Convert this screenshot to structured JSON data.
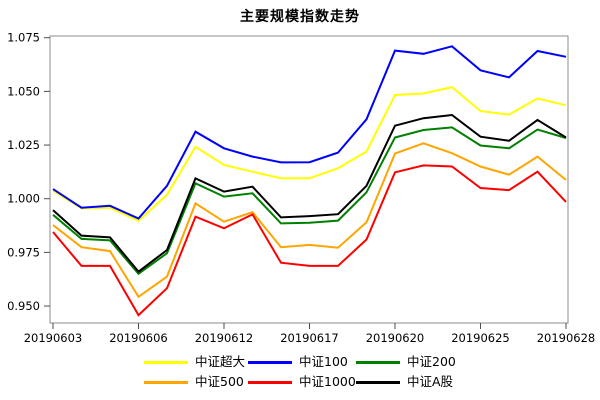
{
  "title": "主要规模指数走势",
  "chart_data": {
    "type": "line",
    "title": "主要规模指数走势",
    "xlabel": "",
    "ylabel": "",
    "grid": false,
    "legend_position": "bottom",
    "frame_color": "#8c8c8c",
    "tick_color": "#4d4d4d",
    "text_color": "#000000",
    "ylim": [
      0.9421,
      1.0758
    ],
    "y_ticks": [
      {
        "label": "1.075",
        "value": 1.075
      },
      {
        "label": "1.050",
        "value": 1.05
      },
      {
        "label": "1.025",
        "value": 1.025
      },
      {
        "label": "1.000",
        "value": 1.0
      },
      {
        "label": "0.975",
        "value": 0.975
      },
      {
        "label": "0.950",
        "value": 0.95
      }
    ],
    "x_categories": [
      "20190603",
      "20190604",
      "20190605",
      "20190606",
      "20190610",
      "20190611",
      "20190612",
      "20190613",
      "20190614",
      "20190617",
      "20190618",
      "20190619",
      "20190620",
      "20190621",
      "20190624",
      "20190625",
      "20190626",
      "20190627",
      "20190628"
    ],
    "x_ticks": [
      {
        "label": "20190603",
        "index": 0
      },
      {
        "label": "20190606",
        "index": 3
      },
      {
        "label": "20190612",
        "index": 6
      },
      {
        "label": "20190617",
        "index": 9
      },
      {
        "label": "20190620",
        "index": 12
      },
      {
        "label": "20190625",
        "index": 15
      },
      {
        "label": "20190628",
        "index": 18
      }
    ],
    "series": [
      {
        "name": "中证超大",
        "color": "#FFFF00",
        "values": [
          1.0038,
          0.9955,
          0.9958,
          0.9897,
          1.0018,
          1.0242,
          1.0157,
          1.0126,
          1.0095,
          1.0095,
          1.0142,
          1.022,
          1.0483,
          1.049,
          1.052,
          1.0408,
          1.0392,
          1.0467,
          1.0435
        ]
      },
      {
        "name": "中证100",
        "color": "#0000FF",
        "values": [
          1.0045,
          0.9958,
          0.9967,
          0.9908,
          1.006,
          1.0312,
          1.0235,
          1.0196,
          1.0169,
          1.017,
          1.0215,
          1.037,
          1.069,
          1.0675,
          1.071,
          1.0598,
          1.0565,
          1.0688,
          1.0661
        ]
      },
      {
        "name": "中证200",
        "color": "#008000",
        "values": [
          0.9925,
          0.9813,
          0.9806,
          0.965,
          0.9746,
          1.0072,
          1.001,
          1.0025,
          0.9885,
          0.9888,
          0.9898,
          1.003,
          1.0285,
          1.032,
          1.0332,
          1.0248,
          1.0235,
          1.0322,
          1.0283
        ]
      },
      {
        "name": "中证500",
        "color": "#FFA500",
        "values": [
          0.9877,
          0.9774,
          0.9756,
          0.9543,
          0.9637,
          0.9978,
          0.9893,
          0.9937,
          0.9774,
          0.9785,
          0.9772,
          0.989,
          1.021,
          1.0258,
          1.0212,
          1.015,
          1.0112,
          1.0196,
          1.0087
        ]
      },
      {
        "name": "中证1000",
        "color": "#FF0000",
        "values": [
          0.9845,
          0.9687,
          0.9687,
          0.9458,
          0.9583,
          0.9916,
          0.9862,
          0.9927,
          0.9702,
          0.9687,
          0.9687,
          0.981,
          1.0123,
          1.0155,
          1.015,
          1.005,
          1.004,
          1.0126,
          0.9985
        ]
      },
      {
        "name": "中证A股",
        "color": "#000000",
        "values": [
          0.9947,
          0.9828,
          0.982,
          0.966,
          0.9761,
          1.0095,
          1.0033,
          1.0056,
          0.9913,
          0.9919,
          0.9928,
          1.006,
          1.034,
          1.0375,
          1.039,
          1.0289,
          1.027,
          1.0367,
          1.0285
        ]
      }
    ]
  }
}
